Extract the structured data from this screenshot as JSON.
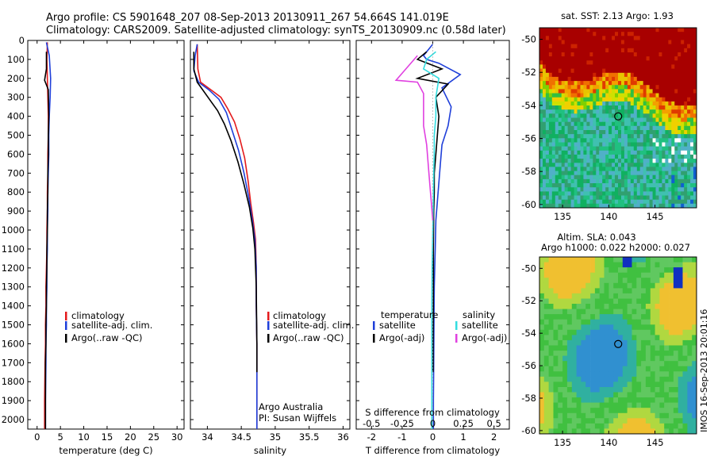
{
  "header": {
    "line1": "Argo profile: CS 5901648_207 08-Sep-2013 20130911_267 54.664S 141.019E",
    "line2": "Climatology: CARS2009. Satellite-adjusted climatology: synTS_20130909.nc (0.58d later)"
  },
  "timestamp": "IMOS 16-Sep-2013 20:01:16",
  "colors": {
    "climatology": "#e41a1c",
    "satellite": "#1f3fd9",
    "argo": "#000000",
    "salinity_satellite": "#33dde0",
    "salinity_argo": "#e040e0"
  },
  "chart_data": [
    {
      "type": "line",
      "xlabel": "temperature (deg C)",
      "ylabel": "",
      "xlim": [
        -2,
        31.5
      ],
      "ylim": [
        0,
        2050
      ],
      "y_reversed": true,
      "xticks": [
        "0",
        "5",
        "10",
        "15",
        "20",
        "25",
        "30"
      ],
      "xtick_values": [
        0,
        5,
        10,
        15,
        20,
        25,
        30
      ],
      "yticks": [
        "0",
        "100",
        "200",
        "300",
        "400",
        "500",
        "600",
        "700",
        "800",
        "900",
        "1000",
        "1100",
        "1200",
        "1300",
        "1400",
        "1500",
        "1600",
        "1700",
        "1800",
        "1900",
        "2000"
      ],
      "ytick_values": [
        0,
        100,
        200,
        300,
        400,
        500,
        600,
        700,
        800,
        900,
        1000,
        1100,
        1200,
        1300,
        1400,
        1500,
        1600,
        1700,
        1800,
        1900,
        2000
      ],
      "legend": [
        "climatology",
        "satellite-adj. clim.",
        "Argo(..raw -QC)"
      ],
      "legend_placement": "center",
      "series": [
        {
          "name": "climatology",
          "color": "#e41a1c",
          "x": [
            2.2,
            2.1,
            2.2,
            2.3,
            2.4,
            2.4,
            2.3,
            2.3,
            2.2,
            2.2,
            2.1,
            2.1,
            2.0,
            1.9,
            1.9,
            1.8,
            1.8,
            1.7,
            1.6,
            1.6
          ],
          "y": [
            10,
            100,
            200,
            300,
            400,
            500,
            600,
            700,
            800,
            900,
            1000,
            1100,
            1200,
            1300,
            1400,
            1500,
            1600,
            1700,
            1900,
            2050
          ]
        },
        {
          "name": "satellite-adj. clim.",
          "color": "#1f3fd9",
          "x": [
            2.0,
            2.6,
            2.9,
            2.8,
            2.6,
            2.5,
            2.5,
            2.4,
            2.3,
            2.3,
            2.2,
            2.2,
            2.1,
            2.1,
            2.0,
            2.0,
            1.9,
            1.9,
            1.8,
            1.8
          ],
          "y": [
            10,
            80,
            200,
            300,
            400,
            500,
            600,
            700,
            800,
            900,
            1000,
            1100,
            1200,
            1300,
            1400,
            1500,
            1600,
            1700,
            1900,
            2050
          ]
        },
        {
          "name": "Argo(..raw -QC)",
          "color": "#000000",
          "x": [
            2.0,
            2.0,
            1.6,
            2.4,
            2.5,
            2.4,
            2.4,
            2.3,
            2.3,
            2.2,
            2.2,
            2.1,
            2.1,
            2.0,
            2.0,
            1.9,
            1.9,
            1.8,
            1.8
          ],
          "y": [
            60,
            150,
            210,
            260,
            400,
            500,
            600,
            700,
            800,
            900,
            1000,
            1100,
            1200,
            1300,
            1400,
            1500,
            1600,
            1700,
            2050
          ]
        }
      ]
    },
    {
      "type": "line",
      "xlabel": "salinity",
      "ylabel": "",
      "xlim": [
        33.75,
        36.1
      ],
      "ylim": [
        0,
        2050
      ],
      "y_reversed": true,
      "xticks": [
        "34",
        "34.5",
        "35",
        "35.5",
        "36"
      ],
      "xtick_values": [
        34,
        34.5,
        35,
        35.5,
        36
      ],
      "legend": [
        "climatology",
        "satellite-adj. clim.",
        "Argo(..raw -QC)"
      ],
      "legend_placement": "center-right",
      "annotation": [
        "Argo Australia",
        "PI: Susan Wijffels"
      ],
      "series": [
        {
          "name": "climatology",
          "color": "#e41a1c",
          "x": [
            33.85,
            33.86,
            33.9,
            34.05,
            34.2,
            34.3,
            34.4,
            34.48,
            34.55,
            34.6,
            34.64,
            34.68,
            34.71,
            34.72,
            34.72,
            34.73,
            34.73,
            34.73,
            34.73
          ],
          "y": [
            20,
            150,
            220,
            260,
            300,
            360,
            430,
            520,
            620,
            740,
            860,
            960,
            1050,
            1200,
            1400,
            1600,
            1800,
            1950,
            2050
          ]
        },
        {
          "name": "satellite-adj. clim.",
          "color": "#1f3fd9",
          "x": [
            33.85,
            33.82,
            33.8,
            33.87,
            34.02,
            34.17,
            34.28,
            34.36,
            34.46,
            34.54,
            34.61,
            34.66,
            34.7,
            34.72,
            34.72,
            34.73,
            34.73,
            34.73,
            34.73
          ],
          "y": [
            20,
            80,
            160,
            220,
            260,
            310,
            380,
            470,
            580,
            700,
            830,
            940,
            1050,
            1200,
            1400,
            1600,
            1800,
            1950,
            2050
          ]
        },
        {
          "name": "Argo(..raw -QC)",
          "color": "#000000",
          "x": [
            33.8,
            33.8,
            33.85,
            33.93,
            34.03,
            34.15,
            34.25,
            34.35,
            34.45,
            34.54,
            34.62,
            34.67,
            34.7,
            34.72,
            34.73,
            34.73
          ],
          "y": [
            60,
            150,
            220,
            260,
            310,
            370,
            440,
            530,
            640,
            760,
            880,
            990,
            1100,
            1300,
            1600,
            1750
          ]
        }
      ]
    },
    {
      "type": "line",
      "xlabel": "T difference from climatology",
      "title_bottom": "S difference from climatology",
      "xlim": [
        -2.5,
        2.5
      ],
      "ylim": [
        0,
        2050
      ],
      "y_reversed": true,
      "xticks": [
        "-2",
        "-1",
        "0",
        "1",
        "2"
      ],
      "xtick_values": [
        -2,
        -1,
        0,
        1,
        2
      ],
      "s_ticks": [
        "-0.5",
        "-0.25",
        "0",
        "0.25",
        "0.5"
      ],
      "s_tick_values": [
        -0.5,
        -0.25,
        0,
        0.25,
        0.5
      ],
      "legend_temperature_title": "temperature",
      "legend_salinity_title": "salinity",
      "legend": [
        "satellite",
        "Argo(-adj)",
        "satellite",
        "Argo(-adj)"
      ],
      "series": [
        {
          "name": "satellite",
          "color": "#1f3fd9",
          "x": [
            0,
            -0.3,
            -0.2,
            0.2,
            0.9,
            0.3,
            0.6,
            0.5,
            0.3,
            0.25,
            0.2,
            0.15,
            0.1,
            0.08,
            0.05,
            0.04,
            0.03,
            0.02,
            0.02
          ],
          "y": [
            20,
            80,
            100,
            120,
            180,
            250,
            350,
            450,
            550,
            650,
            750,
            850,
            950,
            1100,
            1300,
            1500,
            1700,
            1900,
            2050
          ]
        },
        {
          "name": "Argo(-adj)",
          "color": "#000000",
          "x": [
            -0.2,
            -0.5,
            0.3,
            -0.5,
            0.5,
            0.1,
            0.2,
            0.15,
            0.1,
            0.05,
            0.05,
            0.03,
            0.02,
            0.02,
            0.01,
            0.01
          ],
          "y": [
            60,
            100,
            150,
            200,
            230,
            300,
            400,
            500,
            600,
            700,
            800,
            900,
            1100,
            1300,
            1600,
            1750
          ]
        },
        {
          "name": "satellite",
          "color": "#33dde0",
          "x": [
            0.1,
            -0.2,
            -0.3,
            0.2,
            0.1,
            0.1,
            0.05,
            0.05,
            0.03,
            0.02,
            0.0,
            -0.02,
            -0.03,
            -0.03,
            -0.03,
            -0.03
          ],
          "y": [
            60,
            100,
            150,
            200,
            300,
            400,
            500,
            600,
            700,
            800,
            1000,
            1200,
            1400,
            1600,
            1800,
            2050
          ]
        },
        {
          "name": "Argo(-adj)",
          "color": "#e040e0",
          "x": [
            -0.5,
            -1.2,
            -0.5,
            -0.3,
            -0.3,
            -0.3,
            -0.2,
            -0.15,
            -0.1,
            -0.05,
            0.0
          ],
          "y": [
            80,
            210,
            220,
            280,
            350,
            450,
            550,
            650,
            750,
            850,
            950
          ]
        }
      ]
    },
    {
      "type": "heatmap",
      "title": "sat. SST: 2.13 Argo: 1.93",
      "xlim": [
        132.5,
        149.5
      ],
      "ylim": [
        -60.2,
        -49.3
      ],
      "xticks": [
        "135",
        "140",
        "145"
      ],
      "xtick_values": [
        135,
        140,
        145
      ],
      "yticks": [
        "-50",
        "-52",
        "-54",
        "-56",
        "-58",
        "-60"
      ],
      "ytick_values": [
        -50,
        -52,
        -54,
        -56,
        -58,
        -60
      ],
      "marker": {
        "lon": 141.019,
        "lat": -54.664
      }
    },
    {
      "type": "heatmap",
      "title": [
        "Altim. SLA: 0.043",
        "Argo h1000: 0.022 h2000: 0.027"
      ],
      "xlim": [
        132.5,
        149.5
      ],
      "ylim": [
        -60.2,
        -49.3
      ],
      "xticks": [
        "135",
        "140",
        "145"
      ],
      "xtick_values": [
        135,
        140,
        145
      ],
      "yticks": [
        "-50",
        "-52",
        "-54",
        "-56",
        "-58",
        "-60"
      ],
      "ytick_values": [
        -50,
        -52,
        -54,
        -56,
        -58,
        -60
      ],
      "marker": {
        "lon": 141.019,
        "lat": -54.664
      }
    }
  ]
}
